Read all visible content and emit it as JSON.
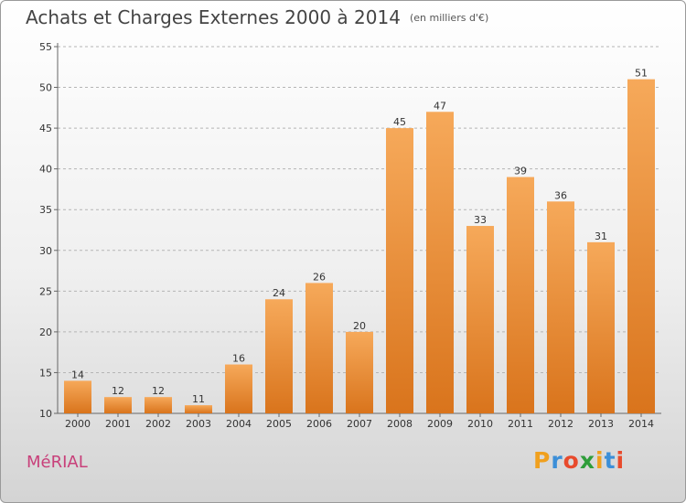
{
  "header": {
    "title": "Achats et Charges Externes 2000 à 2014",
    "subtitle": "(en milliers d'€)"
  },
  "footer": {
    "commune": "MéRIAL",
    "brand_letters": [
      "P",
      "r",
      "o",
      "x",
      "i",
      "t",
      "i"
    ],
    "brand_colors": [
      "#f0a01e",
      "#3c8fd8",
      "#e84a2c",
      "#2f9d3a",
      "#f0a01e",
      "#3c8fd8",
      "#e84a2c"
    ]
  },
  "colors": {
    "bar_light": "#f6a95a",
    "bar_dark": "#d9741c",
    "grid": "#b5b5b5",
    "axis_text": "#333333"
  },
  "chart_data": {
    "type": "bar",
    "title": "Achats et Charges Externes 2000 à 2014",
    "subtitle": "(en milliers d'€)",
    "categories": [
      "2000",
      "2001",
      "2002",
      "2003",
      "2004",
      "2005",
      "2006",
      "2007",
      "2008",
      "2009",
      "2010",
      "2011",
      "2012",
      "2013",
      "2014"
    ],
    "values": [
      14,
      12,
      12,
      11,
      16,
      24,
      26,
      20,
      45,
      47,
      33,
      39,
      36,
      31,
      51
    ],
    "ylim": [
      10,
      55
    ],
    "yticks": [
      10,
      15,
      20,
      25,
      30,
      35,
      40,
      45,
      50,
      55
    ],
    "grid": "horizontal dashed",
    "legend": "none"
  }
}
